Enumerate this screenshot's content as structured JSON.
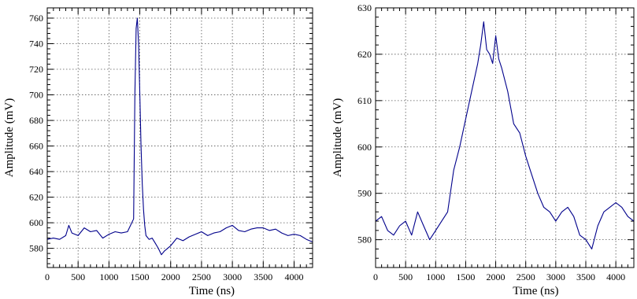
{
  "chart_data": [
    {
      "type": "line",
      "xlabel": "Time (ns)",
      "ylabel": "Amplitude (mV)",
      "xlim": [
        0,
        4300
      ],
      "ylim": [
        565,
        768
      ],
      "xticks": [
        0,
        500,
        1000,
        1500,
        2000,
        2500,
        3000,
        3500,
        4000
      ],
      "yticks": [
        580,
        600,
        620,
        640,
        660,
        680,
        700,
        720,
        740,
        760
      ],
      "grid": true,
      "color": "#00008b",
      "series": [
        {
          "x": [
            0,
            100,
            200,
            300,
            350,
            400,
            500,
            600,
            700,
            800,
            900,
            1000,
            1100,
            1200,
            1300,
            1350,
            1400,
            1420,
            1440,
            1460,
            1480,
            1500,
            1520,
            1540,
            1560,
            1580,
            1600,
            1650,
            1700,
            1750,
            1800,
            1850,
            1900,
            2000,
            2100,
            2200,
            2300,
            2400,
            2500,
            2600,
            2700,
            2800,
            2900,
            3000,
            3100,
            3200,
            3300,
            3400,
            3500,
            3600,
            3700,
            3800,
            3900,
            4000,
            4100,
            4200,
            4300
          ],
          "y": [
            587,
            588,
            587,
            590,
            598,
            592,
            590,
            596,
            593,
            594,
            588,
            591,
            593,
            592,
            593,
            598,
            603,
            700,
            752,
            760,
            740,
            700,
            660,
            630,
            610,
            598,
            590,
            587,
            588,
            584,
            580,
            575,
            578,
            582,
            588,
            586,
            589,
            591,
            593,
            590,
            592,
            593,
            596,
            598,
            594,
            593,
            595,
            596,
            596,
            594,
            595,
            592,
            590,
            591,
            590,
            587,
            585
          ]
        }
      ]
    },
    {
      "type": "line",
      "xlabel": "Time (ns)",
      "ylabel": "Amplitude (mV)",
      "xlim": [
        0,
        4300
      ],
      "ylim": [
        574,
        630
      ],
      "xticks": [
        0,
        500,
        1000,
        1500,
        2000,
        2500,
        3000,
        3500,
        4000
      ],
      "yticks": [
        580,
        590,
        600,
        610,
        620,
        630
      ],
      "grid": true,
      "color": "#00008b",
      "series": [
        {
          "x": [
            0,
            100,
            200,
            300,
            400,
            500,
            600,
            700,
            800,
            900,
            1000,
            1100,
            1200,
            1300,
            1400,
            1500,
            1600,
            1700,
            1750,
            1800,
            1850,
            1900,
            1950,
            2000,
            2050,
            2100,
            2200,
            2300,
            2400,
            2500,
            2600,
            2700,
            2800,
            2900,
            3000,
            3100,
            3200,
            3300,
            3400,
            3500,
            3600,
            3700,
            3800,
            3900,
            4000,
            4100,
            4200,
            4300
          ],
          "y": [
            584,
            585,
            582,
            581,
            583,
            584,
            581,
            586,
            583,
            580,
            582,
            584,
            586,
            595,
            600,
            606,
            612,
            618,
            622,
            627,
            621,
            620,
            618,
            624,
            619,
            617,
            612,
            605,
            603,
            598,
            594,
            590,
            587,
            586,
            584,
            586,
            587,
            585,
            581,
            580,
            578,
            583,
            586,
            587,
            588,
            587,
            585,
            584
          ]
        }
      ]
    }
  ]
}
